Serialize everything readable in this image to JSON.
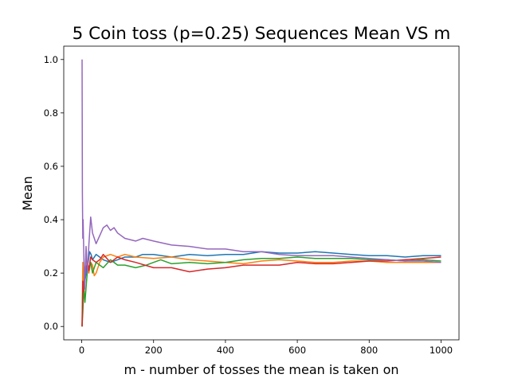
{
  "chart_data": {
    "type": "line",
    "title": "5 Coin toss (p=0.25) Sequences Mean VS m",
    "xlabel": "m - number of tosses the mean is taken on",
    "ylabel": "Mean",
    "xlim": [
      -50,
      1050
    ],
    "ylim": [
      -0.05,
      1.05
    ],
    "xticks": [
      0,
      200,
      400,
      600,
      800,
      1000
    ],
    "yticks": [
      0.0,
      0.2,
      0.4,
      0.6,
      0.8,
      1.0
    ],
    "xtick_labels": [
      "0",
      "200",
      "400",
      "600",
      "800",
      "1000"
    ],
    "ytick_labels": [
      "0.0",
      "0.2",
      "0.4",
      "0.6",
      "0.8",
      "1.0"
    ],
    "grid": false,
    "series": [
      {
        "color": "#1f77b4",
        "x": [
          1,
          3,
          5,
          8,
          10,
          14,
          18,
          22,
          26,
          30,
          40,
          50,
          60,
          80,
          100,
          120,
          150,
          170,
          200,
          250,
          300,
          350,
          400,
          450,
          500,
          550,
          600,
          650,
          700,
          750,
          800,
          850,
          900,
          950,
          1000
        ],
        "y": [
          0.0,
          0.1,
          0.2,
          0.16,
          0.18,
          0.22,
          0.24,
          0.28,
          0.27,
          0.25,
          0.27,
          0.26,
          0.25,
          0.24,
          0.25,
          0.26,
          0.26,
          0.27,
          0.27,
          0.26,
          0.27,
          0.265,
          0.27,
          0.27,
          0.28,
          0.275,
          0.275,
          0.28,
          0.275,
          0.27,
          0.265,
          0.265,
          0.26,
          0.265,
          0.265
        ]
      },
      {
        "color": "#ff7f0e",
        "x": [
          1,
          3,
          5,
          8,
          12,
          16,
          20,
          25,
          30,
          35,
          40,
          50,
          60,
          80,
          100,
          120,
          150,
          200,
          250,
          300,
          350,
          400,
          450,
          500,
          550,
          600,
          650,
          700,
          750,
          800,
          850,
          900,
          950,
          1000
        ],
        "y": [
          0.0,
          0.24,
          0.17,
          0.2,
          0.25,
          0.22,
          0.2,
          0.24,
          0.23,
          0.19,
          0.2,
          0.24,
          0.26,
          0.27,
          0.26,
          0.27,
          0.26,
          0.255,
          0.26,
          0.25,
          0.245,
          0.24,
          0.235,
          0.245,
          0.25,
          0.245,
          0.24,
          0.24,
          0.245,
          0.245,
          0.24,
          0.24,
          0.24,
          0.24
        ]
      },
      {
        "color": "#2ca02c",
        "x": [
          1,
          3,
          6,
          9,
          13,
          17,
          20,
          25,
          30,
          35,
          40,
          50,
          60,
          80,
          100,
          120,
          150,
          180,
          200,
          220,
          250,
          300,
          350,
          400,
          450,
          500,
          550,
          600,
          650,
          700,
          750,
          800,
          850,
          900,
          950,
          1000
        ],
        "y": [
          0.0,
          0.05,
          0.15,
          0.09,
          0.16,
          0.23,
          0.22,
          0.24,
          0.2,
          0.22,
          0.24,
          0.23,
          0.22,
          0.25,
          0.23,
          0.23,
          0.22,
          0.23,
          0.24,
          0.25,
          0.235,
          0.24,
          0.235,
          0.24,
          0.25,
          0.255,
          0.255,
          0.26,
          0.255,
          0.255,
          0.255,
          0.25,
          0.25,
          0.245,
          0.25,
          0.245
        ]
      },
      {
        "color": "#d62728",
        "x": [
          1,
          3,
          5,
          8,
          12,
          16,
          20,
          25,
          30,
          40,
          50,
          60,
          80,
          100,
          120,
          150,
          200,
          250,
          300,
          350,
          400,
          450,
          500,
          550,
          600,
          650,
          700,
          750,
          800,
          850,
          900,
          950,
          1000
        ],
        "y": [
          0.0,
          0.17,
          0.13,
          0.2,
          0.22,
          0.24,
          0.21,
          0.26,
          0.25,
          0.24,
          0.25,
          0.27,
          0.24,
          0.26,
          0.25,
          0.24,
          0.22,
          0.22,
          0.205,
          0.215,
          0.22,
          0.23,
          0.23,
          0.23,
          0.24,
          0.235,
          0.235,
          0.24,
          0.245,
          0.245,
          0.25,
          0.255,
          0.26
        ]
      },
      {
        "color": "#9467bd",
        "x": [
          1,
          2,
          3,
          4,
          6,
          8,
          12,
          16,
          20,
          25,
          30,
          40,
          50,
          60,
          70,
          80,
          90,
          100,
          120,
          150,
          170,
          200,
          250,
          300,
          350,
          400,
          450,
          500,
          550,
          600,
          650,
          700,
          750,
          800,
          850,
          900,
          950,
          1000
        ],
        "y": [
          1.0,
          0.5,
          0.33,
          0.4,
          0.25,
          0.14,
          0.3,
          0.2,
          0.31,
          0.41,
          0.35,
          0.31,
          0.34,
          0.37,
          0.38,
          0.36,
          0.37,
          0.35,
          0.33,
          0.32,
          0.33,
          0.32,
          0.305,
          0.3,
          0.29,
          0.29,
          0.28,
          0.28,
          0.27,
          0.265,
          0.265,
          0.265,
          0.26,
          0.255,
          0.25,
          0.245,
          0.245,
          0.24
        ]
      }
    ]
  }
}
